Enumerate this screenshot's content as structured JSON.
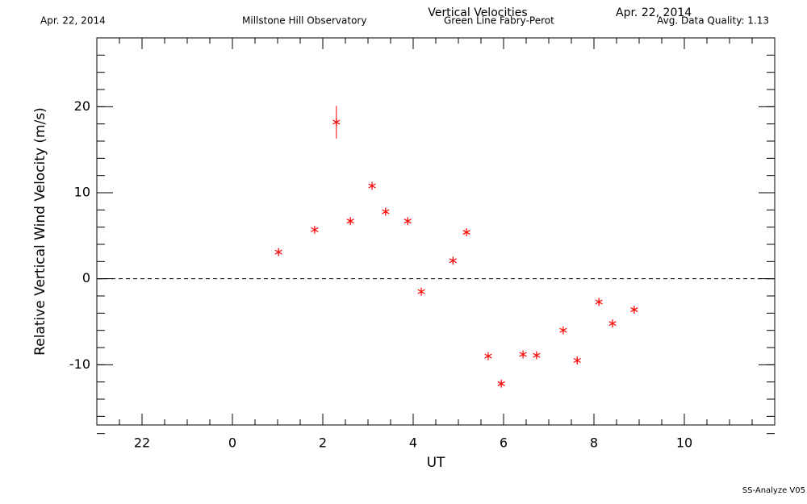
{
  "chart_data": {
    "type": "scatter",
    "title": "Vertical Velocities",
    "date_left": "Apr. 22, 2014",
    "observatory": "Millstone Hill Observatory",
    "date_right": "Apr. 22, 2014",
    "instrument": "Green Line Fabry-Perot",
    "quality": "Avg. Data Quality: 1.13",
    "footer": "SS-Analyze V05",
    "xlabel": "UT",
    "ylabel": "Relative Vertical Wind Velocity (m/s)",
    "xlim": [
      -3,
      12
    ],
    "ylim": [
      -17,
      28
    ],
    "xticks": [
      {
        "value": -2,
        "label": "22"
      },
      0,
      2,
      4,
      6,
      8,
      10
    ],
    "yticks": [
      -10,
      0,
      10,
      20
    ],
    "reference_line": 0,
    "series": [
      {
        "color": "#ff0000",
        "x": [
          1.02,
          1.82,
          2.3,
          2.61,
          3.09,
          3.39,
          3.88,
          4.18,
          4.88,
          5.18,
          5.66,
          5.95,
          6.43,
          6.73,
          7.32,
          7.63,
          8.11,
          8.41,
          8.89
        ],
        "values": [
          3.1,
          5.7,
          18.2,
          6.7,
          10.8,
          7.8,
          6.7,
          -1.5,
          2.1,
          5.4,
          -9.0,
          -12.2,
          -8.8,
          -8.9,
          -6.0,
          -9.5,
          -2.7,
          -5.2,
          -3.6
        ],
        "errors": [
          0.3,
          0.3,
          1.9,
          0.3,
          0.3,
          0.3,
          0.3,
          0.3,
          0.3,
          0.3,
          0.3,
          0.3,
          0.3,
          0.3,
          0.3,
          0.3,
          0.3,
          0.3,
          0.3
        ]
      }
    ]
  }
}
